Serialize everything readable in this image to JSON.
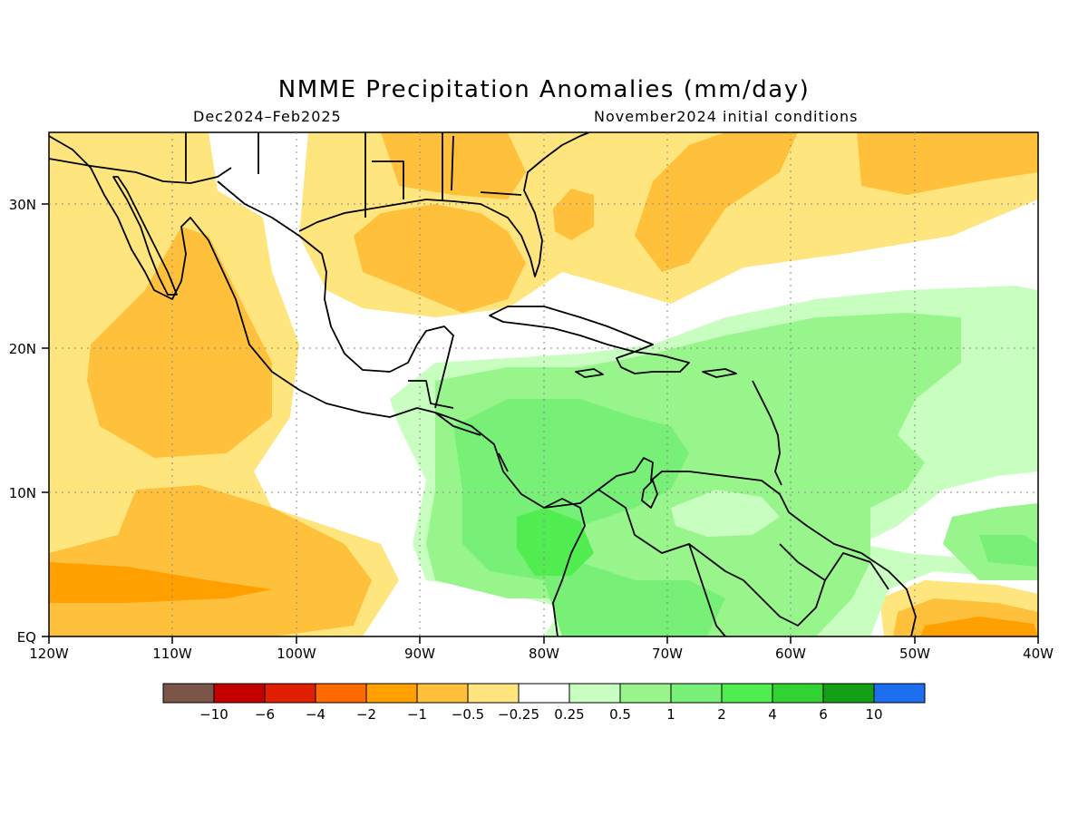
{
  "title": "NMME Precipitation Anomalies (mm/day)",
  "subtitle_left": "Dec2024–Feb2025",
  "subtitle_right": "November2024 initial conditions",
  "map": {
    "lon_range": [
      -120,
      -40
    ],
    "lat_range": [
      0,
      35
    ],
    "lat_ticks": [
      {
        "label": "30N",
        "value": 30
      },
      {
        "label": "20N",
        "value": 20
      },
      {
        "label": "10N",
        "value": 10
      },
      {
        "label": "EQ",
        "value": 0
      }
    ],
    "lon_ticks": [
      {
        "label": "120W",
        "value": -120
      },
      {
        "label": "110W",
        "value": -110
      },
      {
        "label": "100W",
        "value": -100
      },
      {
        "label": "90W",
        "value": -90
      },
      {
        "label": "80W",
        "value": -80
      },
      {
        "label": "70W",
        "value": -70
      },
      {
        "label": "60W",
        "value": -60
      },
      {
        "label": "50W",
        "value": -50
      },
      {
        "label": "40W",
        "value": -40
      }
    ]
  },
  "colorbar": {
    "colors": [
      "#7a5548",
      "#c40000",
      "#e01e00",
      "#ff6a00",
      "#ff9f00",
      "#ffc03c",
      "#ffe57d",
      "#ffffff",
      "#c8ffc0",
      "#98f58c",
      "#78f078",
      "#50ec50",
      "#32d232",
      "#14a014",
      "#1e6ef0"
    ],
    "labels": [
      "−10",
      "−6",
      "−4",
      "−2",
      "−1",
      "−0.5",
      "−0.25",
      "0.25",
      "0.5",
      "1",
      "2",
      "4",
      "6",
      "10"
    ]
  }
}
